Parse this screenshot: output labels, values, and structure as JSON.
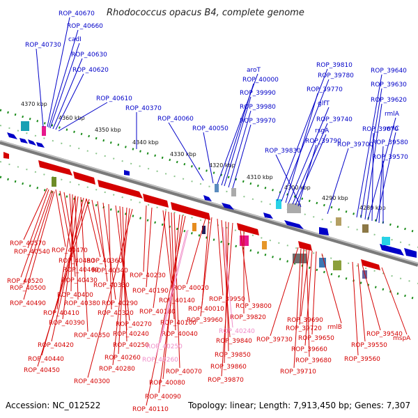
{
  "title": "Rhodococcus opacus B4, complete genome",
  "footer": {
    "accession": "Accession: NC_012522",
    "topology": "Topology: linear; Length: 7,913,450 bp; Genes: 7,307"
  },
  "colors": {
    "forward": "#0000c8",
    "reverse": "#d40000",
    "pseudo": "#f08cc8",
    "track": "#1a8c1a",
    "backbone": "#7a7a7a"
  },
  "ruler_labels": [
    "4370 kbp",
    "4360 kbp",
    "4350 kbp",
    "4340 kbp",
    "4330 kbp",
    "4320 kbp",
    "4310 kbp",
    "4300 kbp",
    "4290 kbp",
    "4280 kbp"
  ],
  "forward_labels": [
    "ROP_40670",
    "ROP_40660",
    "cadI",
    "ROP_40730",
    "ROP_40630",
    "ROP_40620",
    "ROP_40610",
    "ROP_40370",
    "ROP_40060",
    "ROP_40050",
    "aroT",
    "ROP_40000",
    "ROP_39990",
    "ROP_39980",
    "ROP_39970",
    "ROP_39810",
    "ROP_39780",
    "ROP_39770",
    "glfT",
    "ROP_39740",
    "rsgA",
    "ROP_39790",
    "ROP_39830",
    "ROP_39700",
    "ROP_39640",
    "ROP_39630",
    "ROP_39620",
    "rmlA",
    "ROP_39670",
    "rmlC",
    "ROP_39580",
    "ROP_39570"
  ],
  "reverse_labels": [
    "ROP_40570",
    "ROP_40470",
    "ROP_40540",
    "ROP_40480",
    "ROP_40360",
    "ROP_40460",
    "ROP_40340",
    "ROP_40520",
    "ROP_40430",
    "ROP_40500",
    "ROP_40330",
    "ROP_40230",
    "ROP_40400",
    "ROP_40490",
    "ROP_40380",
    "ROP_40290",
    "ROP_40190",
    "ROP_40020",
    "ROP_40410",
    "ROP_40320",
    "ROP_40140",
    "ROP_40390",
    "ROP_40270",
    "ROP_40180",
    "ROP_40010",
    "ROP_39950",
    "ROP_39800",
    "ROP_40100",
    "ROP_39960",
    "ROP_39820",
    "ROP_40350",
    "ROP_40240",
    "ROP_40040",
    "ROP_40420",
    "ROP_40250",
    "ROP_39840",
    "ROP_40440",
    "ROP_40260",
    "ROP_39850",
    "ROP_40280",
    "ROP_40070",
    "ROP_39860",
    "ROP_40450",
    "ROP_40300",
    "ROP_40080",
    "ROP_39870",
    "ROP_40090",
    "ROP_40110",
    "ROP_39690",
    "ROP_39720",
    "rmlB",
    "ROP_39730",
    "ROP_39650",
    "ROP_39540",
    "ROP_39660",
    "ROP_39550",
    "mspA",
    "ROP_39680",
    "ROP_39560",
    "ROP_39710"
  ],
  "pseudo_labels": [
    "ROP_40240",
    "ROP_40250",
    "ROP_40260"
  ]
}
